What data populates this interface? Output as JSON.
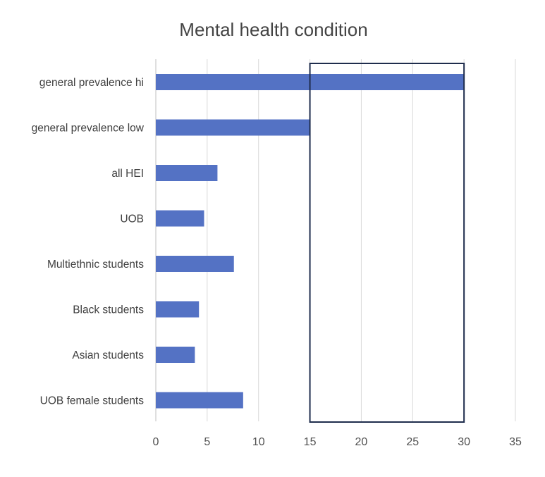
{
  "chart_data": {
    "type": "bar",
    "orientation": "horizontal",
    "title": "Mental health condition",
    "xlabel": "",
    "ylabel": "",
    "categories": [
      "general prevalence hi",
      "general prevalence low",
      "all HEI",
      "UOB",
      "Multiethnic students",
      "Black students",
      "Asian students",
      "UOB female students"
    ],
    "values": [
      30,
      15,
      6,
      4.7,
      7.6,
      4.2,
      3.8,
      8.5
    ],
    "xlim": [
      0,
      35
    ],
    "xticks": [
      "0",
      "5",
      "10",
      "15",
      "20",
      "25",
      "30",
      "35"
    ],
    "grid": "vertical",
    "legend": "none",
    "highlight_box": {
      "x_from": 15,
      "x_to": 30
    },
    "colors": {
      "bar": "#5472c4",
      "grid": "#d9d9d9",
      "highlight": "#1f2d4d",
      "axis": "#bfbfbf"
    }
  }
}
